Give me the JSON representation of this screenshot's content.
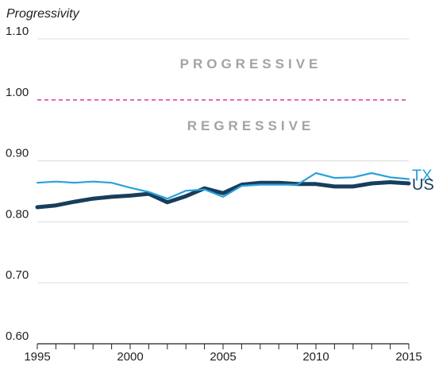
{
  "chart_data": {
    "type": "line",
    "title": "",
    "ylabel": "Progressivity",
    "xlabel": "",
    "xlim": [
      1995,
      2015
    ],
    "ylim": [
      0.6,
      1.1
    ],
    "x_ticks": [
      1995,
      2000,
      2005,
      2010,
      2015
    ],
    "y_ticks": [
      "0.60",
      "0.70",
      "0.80",
      "0.90",
      "1.00",
      "1.10"
    ],
    "grid": true,
    "reference_line": {
      "y": 1.0,
      "color": "#e0489e",
      "style": "dashed"
    },
    "annotations": [
      {
        "text": "PROGRESSIVE",
        "position": "above-reference"
      },
      {
        "text": "REGRESSIVE",
        "position": "below-reference"
      }
    ],
    "x": [
      1995,
      1996,
      1997,
      1998,
      1999,
      2000,
      2001,
      2002,
      2003,
      2004,
      2005,
      2006,
      2007,
      2008,
      2009,
      2010,
      2011,
      2012,
      2013,
      2014,
      2015
    ],
    "series": [
      {
        "name": "TX",
        "color": "#2aa0dc",
        "values": [
          0.864,
          0.866,
          0.864,
          0.866,
          0.864,
          0.856,
          0.849,
          0.838,
          0.851,
          0.853,
          0.841,
          0.859,
          0.861,
          0.861,
          0.861,
          0.88,
          0.872,
          0.873,
          0.88,
          0.873,
          0.87
        ]
      },
      {
        "name": "US",
        "color": "#173e5c",
        "values": [
          0.824,
          0.827,
          0.833,
          0.838,
          0.841,
          0.843,
          0.846,
          0.832,
          0.842,
          0.855,
          0.847,
          0.861,
          0.864,
          0.864,
          0.862,
          0.862,
          0.858,
          0.858,
          0.863,
          0.865,
          0.863
        ]
      }
    ]
  }
}
